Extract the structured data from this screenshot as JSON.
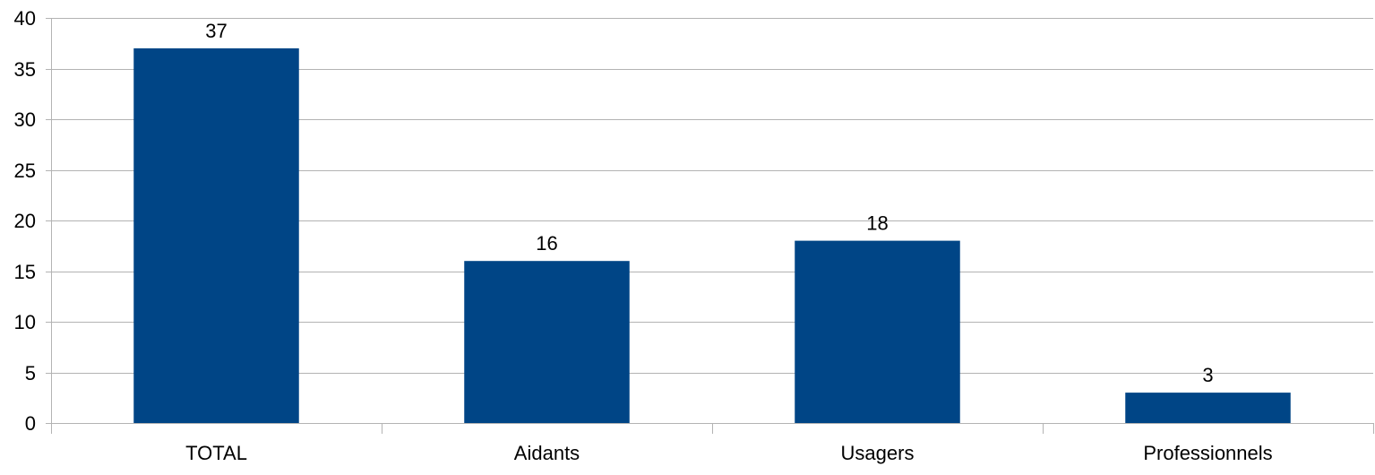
{
  "chart_data": {
    "type": "bar",
    "categories": [
      "TOTAL",
      "Aidants",
      "Usagers",
      "Professionnels"
    ],
    "values": [
      37,
      16,
      18,
      3
    ],
    "data_labels": [
      "37",
      "16",
      "18",
      "3"
    ],
    "title": "",
    "xlabel": "",
    "ylabel": "",
    "ylim": [
      0,
      40
    ],
    "yticks": [
      0,
      5,
      10,
      15,
      20,
      25,
      30,
      35,
      40
    ],
    "ytick_labels": [
      "0",
      "5",
      "10",
      "15",
      "20",
      "25",
      "30",
      "35",
      "40"
    ],
    "grid": true,
    "legend": "none",
    "bar_color": "#004586",
    "grid_color": "#b3b3b3"
  }
}
